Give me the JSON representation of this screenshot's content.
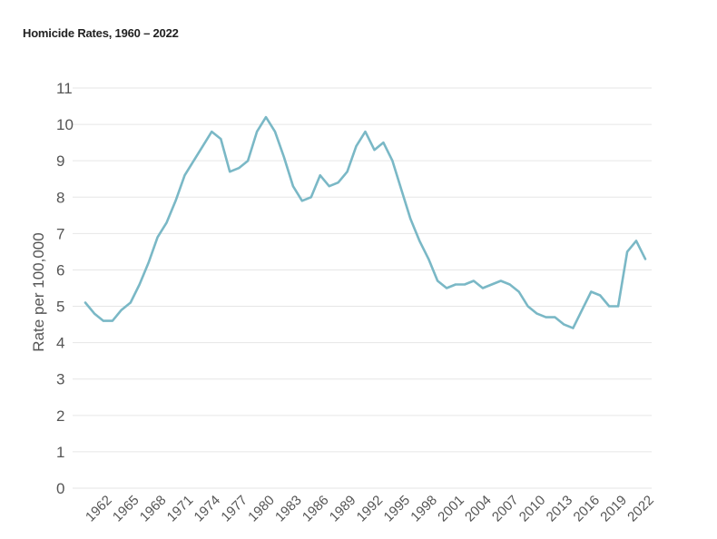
{
  "chart_data": {
    "type": "line",
    "title": "Homicide Rates, 1960 – 2022",
    "xlabel": "",
    "ylabel": "Rate per 100,000",
    "ylim": [
      0,
      11
    ],
    "xlim": [
      1960,
      2022
    ],
    "yticks": [
      0,
      1,
      2,
      3,
      4,
      5,
      6,
      7,
      8,
      9,
      10,
      11
    ],
    "xticks": [
      1962,
      1965,
      1968,
      1971,
      1974,
      1977,
      1980,
      1983,
      1986,
      1989,
      1992,
      1995,
      1998,
      2001,
      2004,
      2007,
      2010,
      2013,
      2016,
      2019,
      2022
    ],
    "grid": true,
    "color": "#7ab8c6",
    "series": [
      {
        "x": [
          1960,
          1961,
          1962,
          1963,
          1964,
          1965,
          1966,
          1967,
          1968,
          1969,
          1970,
          1971,
          1972,
          1973,
          1974,
          1975,
          1976,
          1977,
          1978,
          1979,
          1980,
          1981,
          1982,
          1983,
          1984,
          1985,
          1986,
          1987,
          1988,
          1989,
          1990,
          1991,
          1992,
          1993,
          1994,
          1995,
          1996,
          1997,
          1998,
          1999,
          2000,
          2001,
          2002,
          2003,
          2004,
          2005,
          2006,
          2007,
          2008,
          2009,
          2010,
          2011,
          2012,
          2013,
          2014,
          2015,
          2016,
          2017,
          2018,
          2019,
          2020,
          2021,
          2022
        ],
        "values": [
          5.1,
          4.8,
          4.6,
          4.6,
          4.9,
          5.1,
          5.6,
          6.2,
          6.9,
          7.3,
          7.9,
          8.6,
          9.0,
          9.4,
          9.8,
          9.6,
          8.7,
          8.8,
          9.0,
          9.8,
          10.2,
          9.8,
          9.1,
          8.3,
          7.9,
          8.0,
          8.6,
          8.3,
          8.4,
          8.7,
          9.4,
          9.8,
          9.3,
          9.5,
          9.0,
          8.2,
          7.4,
          6.8,
          6.3,
          5.7,
          5.5,
          5.6,
          5.6,
          5.7,
          5.5,
          5.6,
          5.7,
          5.6,
          5.4,
          5.0,
          4.8,
          4.7,
          4.7,
          4.5,
          4.4,
          4.9,
          5.4,
          5.3,
          5.0,
          5.0,
          6.5,
          6.8,
          6.3
        ]
      }
    ]
  }
}
